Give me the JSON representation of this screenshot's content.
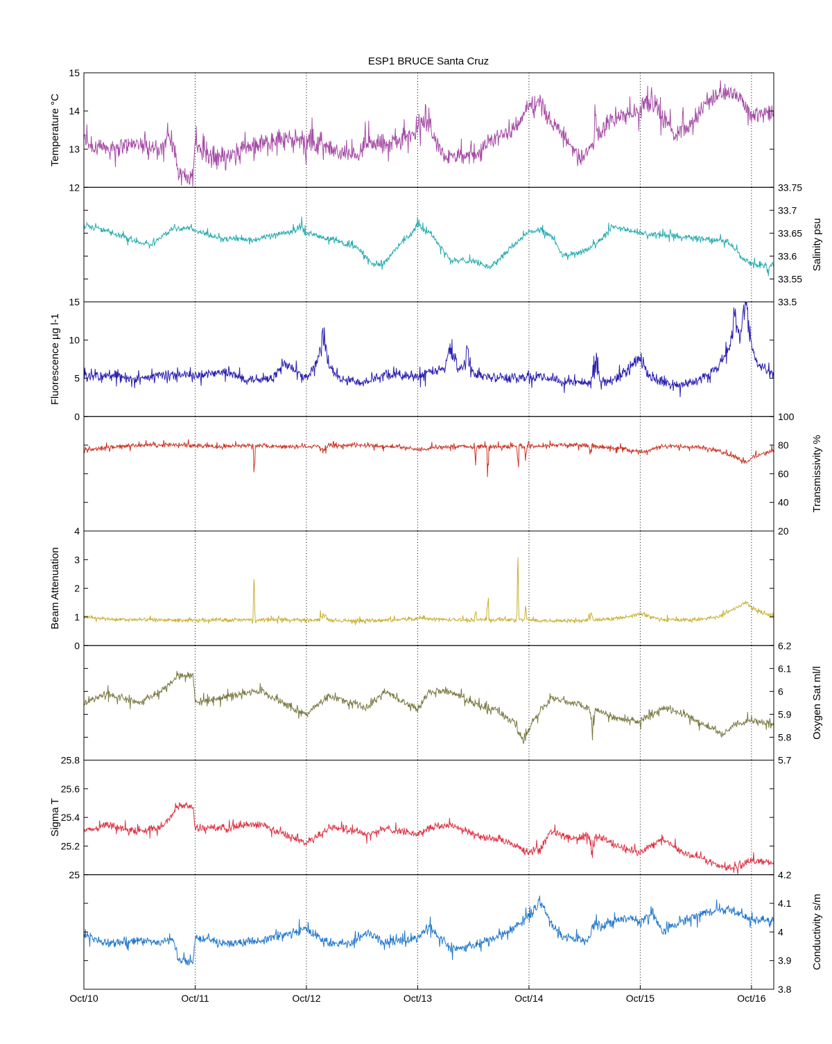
{
  "chart_data": {
    "type": "line",
    "title": "ESP1 BRUCE Santa Cruz",
    "x_ticks": [
      "Oct/10",
      "Oct/11",
      "Oct/12",
      "Oct/13",
      "Oct/14",
      "Oct/15",
      "Oct/16"
    ],
    "x_range_days": [
      0,
      6.2
    ],
    "grid": "vertical dotted at each day",
    "panels": [
      {
        "id": "temperature",
        "ylabel": "Temperature °C",
        "axis_side": "left",
        "ylim": [
          12,
          15
        ],
        "ticks": [
          "12",
          "13",
          "14",
          "15"
        ],
        "color": "#a64ca6",
        "noise": 0.18,
        "spikes": [
          [
            1.2,
            0.25,
            -0.6
          ],
          [
            2.0,
            0.25,
            -0.7
          ],
          [
            3.1,
            0.12,
            0.6
          ],
          [
            4.05,
            0.1,
            0.5
          ],
          [
            4.6,
            0.05,
            0.8
          ],
          [
            5.05,
            0.15,
            0.5
          ]
        ],
        "series": {
          "x": [
            0,
            0.1,
            0.5,
            0.7,
            0.75,
            0.82,
            0.85,
            0.98,
            1.0,
            1.3,
            1.5,
            1.8,
            1.95,
            2.1,
            2.3,
            2.45,
            2.55,
            2.7,
            2.85,
            3.0,
            3.1,
            3.2,
            3.4,
            3.55,
            3.7,
            3.85,
            4.0,
            4.1,
            4.3,
            4.45,
            4.6,
            4.7,
            4.85,
            5.0,
            5.1,
            5.2,
            5.3,
            5.5,
            5.6,
            5.7,
            5.85,
            6.0,
            6.2
          ],
          "y": [
            13.3,
            13.0,
            13.15,
            12.95,
            13.4,
            12.95,
            12.3,
            12.3,
            13.2,
            13.0,
            13.05,
            13.3,
            13.6,
            13.4,
            12.9,
            12.85,
            13.2,
            13.1,
            13.2,
            13.5,
            13.4,
            12.8,
            12.8,
            12.9,
            13.3,
            13.5,
            14.0,
            14.1,
            13.4,
            12.8,
            13.1,
            13.7,
            13.9,
            13.8,
            14.1,
            13.9,
            13.4,
            13.8,
            14.2,
            14.4,
            14.5,
            13.9,
            14.0
          ]
        }
      },
      {
        "id": "salinity",
        "ylabel": "Salinity psu",
        "axis_side": "right",
        "ylim": [
          33.5,
          33.75
        ],
        "ticks": [
          "33.5",
          "33.55",
          "33.6",
          "33.65",
          "33.7",
          "33.75"
        ],
        "color": "#2aacb0",
        "noise": 0.005,
        "spikes": [
          [
            1.95,
            0.05,
            0.025
          ],
          [
            3.0,
            0.05,
            0.02
          ],
          [
            4.1,
            0.05,
            0.012
          ],
          [
            6.15,
            0.02,
            -0.02
          ]
        ],
        "series": {
          "x": [
            0,
            0.2,
            0.5,
            0.6,
            0.8,
            0.95,
            1.2,
            1.5,
            1.9,
            2.1,
            2.45,
            2.6,
            2.7,
            2.85,
            3.0,
            3.1,
            3.3,
            3.5,
            3.65,
            3.8,
            4.0,
            4.2,
            4.3,
            4.5,
            4.6,
            4.75,
            5.0,
            5.2,
            5.5,
            5.7,
            5.8,
            5.9,
            6.0,
            6.2
          ],
          "y": [
            33.67,
            33.655,
            33.63,
            33.625,
            33.66,
            33.66,
            33.64,
            33.635,
            33.655,
            33.645,
            33.62,
            33.58,
            33.585,
            33.63,
            33.66,
            33.655,
            33.59,
            33.59,
            33.575,
            33.61,
            33.655,
            33.645,
            33.6,
            33.61,
            33.625,
            33.665,
            33.65,
            33.645,
            33.64,
            33.635,
            33.63,
            33.6,
            33.58,
            33.58
          ]
        }
      },
      {
        "id": "fluorescence",
        "ylabel": "Fluorescence µg l-1",
        "axis_side": "left",
        "ylim": [
          0,
          15
        ],
        "ticks": [
          "0",
          "5",
          "10",
          "15"
        ],
        "color": "#2a1fb0",
        "noise": 0.5,
        "spikes": [
          [
            2.15,
            0.05,
            4.5
          ],
          [
            3.3,
            0.06,
            5.5
          ],
          [
            3.45,
            0.05,
            4
          ],
          [
            4.6,
            0.04,
            6.5
          ],
          [
            5.0,
            0.08,
            2
          ],
          [
            5.85,
            0.05,
            5
          ],
          [
            5.95,
            0.05,
            6
          ]
        ],
        "series": {
          "x": [
            0,
            0.3,
            0.5,
            0.7,
            1.0,
            1.25,
            1.45,
            1.7,
            1.8,
            2.0,
            2.15,
            2.3,
            2.5,
            2.7,
            3.0,
            3.3,
            3.6,
            3.9,
            4.1,
            4.3,
            4.6,
            4.8,
            4.95,
            5.1,
            5.3,
            5.5,
            5.7,
            5.85,
            5.95,
            6.05,
            6.2
          ],
          "y": [
            5.2,
            5.3,
            4.8,
            5.5,
            5.4,
            5.8,
            4.9,
            5.0,
            7.0,
            5.0,
            8.0,
            4.8,
            4.5,
            5.5,
            5.3,
            6.5,
            5.2,
            5.0,
            5.2,
            4.7,
            4.3,
            5.0,
            7.0,
            5.0,
            4.0,
            4.5,
            6.5,
            10.0,
            11.5,
            7.0,
            5.5
          ]
        }
      },
      {
        "id": "transmissivity",
        "ylabel": "Transmissivity %",
        "axis_side": "right",
        "ylim": [
          20,
          100
        ],
        "ticks": [
          "20",
          "40",
          "60",
          "80",
          "100"
        ],
        "color": "#cc3322",
        "noise": 1.2,
        "spikes": [
          [
            1.53,
            0.01,
            -34
          ],
          [
            3.52,
            0.01,
            -15
          ],
          [
            3.63,
            0.01,
            -33
          ],
          [
            3.9,
            0.01,
            -40
          ],
          [
            3.97,
            0.01,
            -15
          ],
          [
            2.15,
            0.05,
            -6
          ],
          [
            4.55,
            0.03,
            -6
          ]
        ],
        "series": {
          "x": [
            0,
            0.3,
            0.6,
            0.9,
            1.2,
            1.5,
            1.8,
            2.0,
            2.2,
            2.5,
            2.8,
            3.0,
            3.3,
            3.6,
            3.9,
            4.2,
            4.5,
            4.8,
            5.0,
            5.2,
            5.5,
            5.7,
            5.85,
            5.95,
            6.05,
            6.2
          ],
          "y": [
            76,
            79,
            80,
            80,
            79,
            80,
            79,
            79,
            80,
            80,
            79,
            77,
            79,
            79,
            79,
            80,
            80,
            78,
            75,
            79,
            79,
            76,
            72,
            68,
            73,
            76
          ]
        }
      },
      {
        "id": "beam_attenuation",
        "ylabel": "Beam Attenuation",
        "axis_side": "left",
        "ylim": [
          0,
          4
        ],
        "ticks": [
          "0",
          "1",
          "2",
          "3",
          "4"
        ],
        "color": "#c9b030",
        "noise": 0.05,
        "spikes": [
          [
            1.53,
            0.01,
            2.5
          ],
          [
            3.52,
            0.01,
            1.0
          ],
          [
            3.63,
            0.01,
            2.4
          ],
          [
            3.9,
            0.01,
            3.0
          ],
          [
            3.97,
            0.01,
            0.9
          ],
          [
            2.15,
            0.05,
            0.4
          ],
          [
            4.55,
            0.03,
            0.4
          ]
        ],
        "series": {
          "x": [
            0,
            0.3,
            0.6,
            0.9,
            1.2,
            1.5,
            1.8,
            2.0,
            2.2,
            2.5,
            2.8,
            3.0,
            3.3,
            3.6,
            3.9,
            4.2,
            4.5,
            4.8,
            5.0,
            5.2,
            5.5,
            5.7,
            5.85,
            5.95,
            6.05,
            6.2
          ],
          "y": [
            1.0,
            0.9,
            0.9,
            0.88,
            0.9,
            0.9,
            0.9,
            0.9,
            0.88,
            0.87,
            0.9,
            0.95,
            0.9,
            0.9,
            0.9,
            0.87,
            0.87,
            0.95,
            1.1,
            0.9,
            0.9,
            1.0,
            1.3,
            1.5,
            1.2,
            1.0
          ]
        }
      },
      {
        "id": "oxygen_sat",
        "ylabel": "Oxygen Sat ml/l",
        "axis_side": "right",
        "ylim": [
          5.7,
          6.2
        ],
        "ticks": [
          "5.7",
          "5.8",
          "5.9",
          "6",
          "6.1",
          "6.2"
        ],
        "color": "#7a7a44",
        "noise": 0.012,
        "spikes": [
          [
            4.57,
            0.03,
            -0.15
          ],
          [
            3.95,
            0.08,
            -0.08
          ]
        ],
        "series": {
          "x": [
            0,
            0.2,
            0.5,
            0.7,
            0.85,
            0.98,
            1.0,
            1.3,
            1.6,
            1.9,
            2.0,
            2.2,
            2.4,
            2.55,
            2.7,
            2.9,
            3.0,
            3.1,
            3.3,
            3.5,
            3.7,
            3.9,
            4.0,
            4.2,
            4.4,
            4.6,
            4.8,
            5.0,
            5.2,
            5.4,
            5.6,
            5.75,
            5.85,
            6.0,
            6.2
          ],
          "y": [
            5.95,
            5.99,
            5.95,
            6.0,
            6.07,
            6.07,
            5.95,
            5.98,
            6.0,
            5.92,
            5.9,
            5.98,
            5.95,
            5.93,
            6.0,
            5.95,
            5.92,
            6.0,
            6.0,
            5.95,
            5.92,
            5.85,
            5.85,
            5.97,
            5.95,
            5.92,
            5.88,
            5.87,
            5.93,
            5.9,
            5.85,
            5.81,
            5.86,
            5.87,
            5.86
          ]
        }
      },
      {
        "id": "sigma_t",
        "ylabel": "Sigma T",
        "axis_side": "left",
        "ylim": [
          25,
          25.8
        ],
        "ticks": [
          "25",
          "25.2",
          "25.4",
          "25.6",
          "25.8"
        ],
        "color": "#dd3344",
        "noise": 0.02,
        "spikes": [
          [
            4.57,
            0.03,
            -0.2
          ],
          [
            4.1,
            0.08,
            -0.1
          ]
        ],
        "series": {
          "x": [
            0,
            0.2,
            0.5,
            0.7,
            0.85,
            0.98,
            1.0,
            1.3,
            1.6,
            1.9,
            2.0,
            2.2,
            2.4,
            2.55,
            2.7,
            2.9,
            3.0,
            3.1,
            3.3,
            3.5,
            3.7,
            3.9,
            4.0,
            4.2,
            4.4,
            4.6,
            4.8,
            5.0,
            5.2,
            5.4,
            5.6,
            5.75,
            5.85,
            6.0,
            6.2
          ],
          "y": [
            25.3,
            25.35,
            25.3,
            25.33,
            25.48,
            25.48,
            25.32,
            25.33,
            25.35,
            25.25,
            25.22,
            25.33,
            25.32,
            25.28,
            25.32,
            25.3,
            25.28,
            25.33,
            25.35,
            25.28,
            25.25,
            25.2,
            25.15,
            25.3,
            25.25,
            25.28,
            25.2,
            25.15,
            25.25,
            25.15,
            25.1,
            25.05,
            25.05,
            25.1,
            25.08
          ]
        }
      },
      {
        "id": "conductivity",
        "ylabel": "Conductivity s/m",
        "axis_side": "right",
        "ylim": [
          3.8,
          4.2
        ],
        "ticks": [
          "3.8",
          "3.9",
          "4",
          "4.1",
          "4.2"
        ],
        "color": "#2277cc",
        "noise": 0.012,
        "spikes": [
          [
            4.1,
            0.08,
            0.05
          ],
          [
            4.6,
            0.05,
            0.06
          ]
        ],
        "series": {
          "x": [
            0,
            0.2,
            0.5,
            0.7,
            0.8,
            0.85,
            0.98,
            1.0,
            1.3,
            1.6,
            1.9,
            2.0,
            2.2,
            2.4,
            2.55,
            2.7,
            3.0,
            3.1,
            3.3,
            3.5,
            3.7,
            3.9,
            4.0,
            4.1,
            4.3,
            4.5,
            4.7,
            4.9,
            5.0,
            5.1,
            5.2,
            5.4,
            5.6,
            5.8,
            5.9,
            6.0,
            6.2
          ],
          "y": [
            3.99,
            3.96,
            3.97,
            3.96,
            3.98,
            3.9,
            3.9,
            3.98,
            3.96,
            3.97,
            4.0,
            4.01,
            3.96,
            3.96,
            4.0,
            3.96,
            3.98,
            4.02,
            3.94,
            3.95,
            3.98,
            4.02,
            4.06,
            4.08,
            3.98,
            3.97,
            4.03,
            4.05,
            4.03,
            4.07,
            4.0,
            4.04,
            4.07,
            4.08,
            4.06,
            4.04,
            4.04
          ]
        }
      }
    ]
  }
}
